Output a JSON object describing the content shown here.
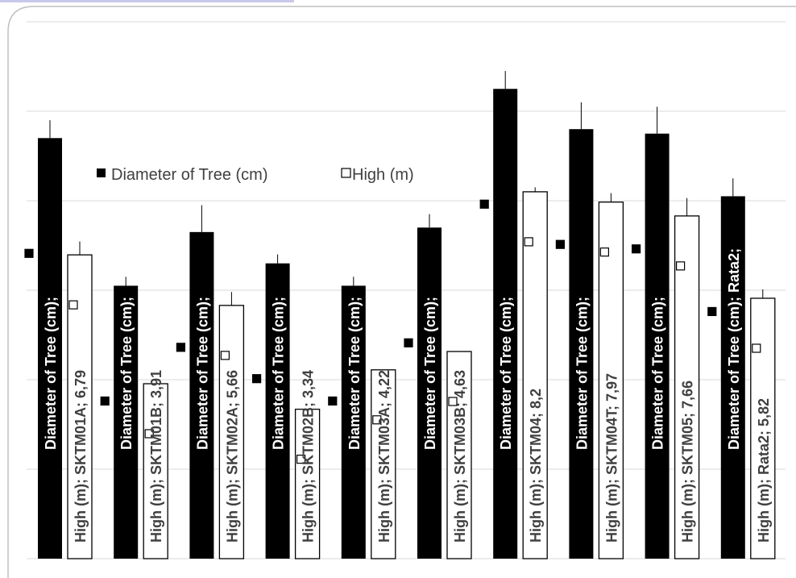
{
  "chart_data": {
    "type": "bar",
    "categories": [
      "SKTM01A",
      "SKTM01B",
      "SKTM02A",
      "SKTM02B",
      "SKTM03A",
      "SKTM03B",
      "SKTM04",
      "SKTM04T",
      "SKTM05",
      "Rata2"
    ],
    "series": [
      {
        "name": "Diameter of Tree  (cm)",
        "color": "#000000",
        "values": [
          9.4,
          6.1,
          7.3,
          6.6,
          6.1,
          7.4,
          10.5,
          9.6,
          9.5,
          8.1
        ],
        "error": [
          0.4,
          0.2,
          0.6,
          0.2,
          0.2,
          0.3,
          0.4,
          0.6,
          0.6,
          0.4
        ],
        "labels": [
          "Diameter of Tree  (cm);",
          "Diameter of Tree  (cm);",
          "Diameter of Tree  (cm);",
          "Diameter of Tree  (cm);",
          "Diameter of Tree  (cm);",
          "Diameter of Tree  (cm);",
          "Diameter of Tree  (cm);",
          "Diameter of Tree  (cm);",
          "Diameter of Tree  (cm);",
          "Diameter of Tree  (cm); Rata2;"
        ]
      },
      {
        "name": "High (m)",
        "color": "#ffffff",
        "values": [
          6.79,
          3.91,
          5.66,
          3.34,
          4.22,
          4.63,
          8.2,
          7.97,
          7.66,
          5.82
        ],
        "error": [
          0.3,
          0.0,
          0.3,
          0.0,
          0.0,
          0.0,
          0.1,
          0.2,
          0.4,
          0.2
        ],
        "labels": [
          "High (m); SKTM01A; 6,79",
          "High (m); SKTM01B; 3,91",
          "High (m); SKTM02A; 5,66",
          "High (m); SKTM02B; 3,34",
          "High (m); SKTM03A; 4,22",
          "High (m); SKTM03B; 4,63",
          "High (m); SKTM04; 8,2",
          "High (m); SKTM04T; 7,97",
          "High (m); SKTM05; 7,66",
          "High (m); Rata2; 5,82"
        ]
      }
    ],
    "ylim": [
      0,
      12
    ],
    "grid": true,
    "legend": {
      "placement": "upper-left",
      "entries": [
        "Diameter of Tree  (cm)",
        "High (m)"
      ]
    },
    "title": "",
    "xlabel": "",
    "ylabel": ""
  }
}
